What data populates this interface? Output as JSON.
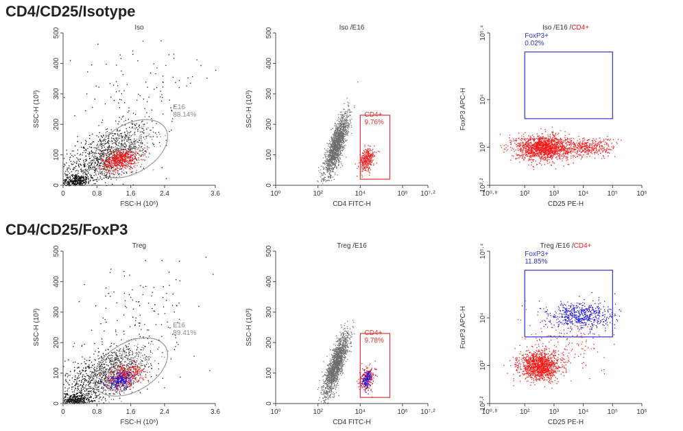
{
  "rows": [
    {
      "title": "CD4/CD25/Isotype"
    },
    {
      "title": "CD4/CD25/FoxP3"
    }
  ],
  "colors": {
    "black": "#111111",
    "gray": "#6e6e6e",
    "red": "#ff1414",
    "blue": "#1414e6",
    "gate_red": "#e03030",
    "gate_blue": "#3030c8",
    "ellipse": "#9a9a9a"
  },
  "chart_data": [
    {
      "id": "p11",
      "type": "scatter",
      "title": "Iso",
      "xlabel": "FSC-H (10⁶)",
      "ylabel": "SSC-H (10³)",
      "xscale": "linear",
      "xlim": [
        0,
        3.6
      ],
      "xticks": [
        "0",
        "0.8",
        "1.6",
        "2.4",
        "3.6"
      ],
      "xtickvals": [
        0,
        0.8,
        1.6,
        2.4,
        3.6
      ],
      "yscale": "linear",
      "ylim": [
        0,
        500
      ],
      "yticks": [
        "0",
        "100",
        "200",
        "300",
        "400",
        "500"
      ],
      "ytickvals": [
        0,
        100,
        200,
        300,
        400,
        500
      ],
      "populations": [
        {
          "color": "black",
          "n": 900,
          "center": [
            0.9,
            90
          ],
          "spread": [
            0.55,
            55
          ],
          "corr": 0.6
        },
        {
          "color": "black",
          "n": 350,
          "center": [
            0.3,
            15
          ],
          "spread": [
            0.18,
            10
          ],
          "corr": 0.2
        },
        {
          "color": "black",
          "n": 140,
          "center": [
            1.8,
            300
          ],
          "spread": [
            0.8,
            120
          ],
          "corr": 0.3
        },
        {
          "color": "gray",
          "n": 400,
          "center": [
            1.4,
            110
          ],
          "spread": [
            0.35,
            40
          ],
          "corr": 0.5
        },
        {
          "color": "red",
          "n": 500,
          "center": [
            1.35,
            85
          ],
          "spread": [
            0.22,
            18
          ],
          "corr": 0.3
        }
      ],
      "gate": {
        "kind": "ellipse",
        "label": "E16",
        "pct": "88.14%",
        "cx": 1.6,
        "cy": 120,
        "rx": 0.95,
        "ry": 80,
        "angle": -30,
        "label_at": [
          2.6,
          250
        ]
      }
    },
    {
      "id": "p12",
      "type": "scatter",
      "title": "Iso /E16",
      "xlabel": "CD4 FITC-H",
      "ylabel": "SSC-H (10³)",
      "xscale": "log",
      "xlim": [
        0,
        7.2
      ],
      "xticks": [
        "10⁰",
        "10²",
        "10⁴",
        "10⁶",
        "10⁷·²"
      ],
      "xtickvals": [
        0,
        2,
        4,
        6,
        7.2
      ],
      "yscale": "linear",
      "ylim": [
        0,
        500
      ],
      "yticks": [
        "0",
        "100",
        "200",
        "300",
        "400",
        "500"
      ],
      "ytickvals": [
        0,
        100,
        200,
        300,
        400,
        500
      ],
      "populations": [
        {
          "color": "gray",
          "n": 1600,
          "center": [
            2.85,
            130
          ],
          "spread": [
            0.28,
            50
          ],
          "corr": 0.8
        },
        {
          "color": "red",
          "n": 300,
          "center": [
            4.3,
            85
          ],
          "spread": [
            0.18,
            20
          ],
          "corr": 0.3
        }
      ],
      "gate": {
        "kind": "rect",
        "label": "CD4+",
        "pct": "9.76%",
        "x0": 4.0,
        "x1": 5.4,
        "y0": 20,
        "y1": 230,
        "label_at": [
          4.2,
          225
        ]
      }
    },
    {
      "id": "p13",
      "type": "scatter",
      "title": "Iso /E16 /",
      "title_red": "CD4+",
      "xlabel": "CD25 PE-H",
      "ylabel": "FoxP3 APC-H",
      "xscale": "log",
      "xlim": [
        0.8,
        6
      ],
      "xticks": [
        "10⁰·⁸",
        "10²",
        "10³",
        "10⁴",
        "10⁵",
        "10⁶"
      ],
      "xtickvals": [
        0.8,
        2,
        3,
        4,
        5,
        6
      ],
      "yscale": "log",
      "ylim": [
        2.2,
        5.4
      ],
      "yticks": [
        "10²·²",
        "10³",
        "10⁴",
        "10⁵·⁴"
      ],
      "ytickvals": [
        2.2,
        3,
        4,
        5.4
      ],
      "populations": [
        {
          "color": "red",
          "n": 1400,
          "center": [
            2.6,
            3.0
          ],
          "spread": [
            0.45,
            0.13
          ],
          "corr": 0
        },
        {
          "color": "red",
          "n": 400,
          "center": [
            4.1,
            3.0
          ],
          "spread": [
            0.5,
            0.1
          ],
          "corr": 0
        }
      ],
      "gate": {
        "kind": "rect",
        "label": "FoxP3+",
        "pct": "0.02%",
        "x0": 2.0,
        "x1": 5.0,
        "y0": 3.6,
        "y1": 5.0,
        "label_at": [
          2.0,
          5.3
        ]
      }
    },
    {
      "id": "p21",
      "type": "scatter",
      "title": "Treg",
      "xlabel": "FSC-H (10⁶)",
      "ylabel": "SSC-H (10³)",
      "xscale": "linear",
      "xlim": [
        0,
        3.6
      ],
      "xticks": [
        "0",
        "0.8",
        "1.6",
        "2.4",
        "3.6"
      ],
      "xtickvals": [
        0,
        0.8,
        1.6,
        2.4,
        3.6
      ],
      "yscale": "linear",
      "ylim": [
        0,
        500
      ],
      "yticks": [
        "0",
        "100",
        "200",
        "300",
        "400",
        "500"
      ],
      "ytickvals": [
        0,
        100,
        200,
        300,
        400,
        500
      ],
      "populations": [
        {
          "color": "black",
          "n": 900,
          "center": [
            0.9,
            90
          ],
          "spread": [
            0.55,
            55
          ],
          "corr": 0.6
        },
        {
          "color": "black",
          "n": 350,
          "center": [
            0.3,
            15
          ],
          "spread": [
            0.18,
            10
          ],
          "corr": 0.2
        },
        {
          "color": "black",
          "n": 140,
          "center": [
            1.8,
            300
          ],
          "spread": [
            0.8,
            120
          ],
          "corr": 0.3
        },
        {
          "color": "gray",
          "n": 400,
          "center": [
            1.4,
            110
          ],
          "spread": [
            0.35,
            40
          ],
          "corr": 0.5
        },
        {
          "color": "red",
          "n": 380,
          "center": [
            1.45,
            90
          ],
          "spread": [
            0.22,
            20
          ],
          "corr": 0.3
        },
        {
          "color": "blue",
          "n": 200,
          "center": [
            1.35,
            75
          ],
          "spread": [
            0.15,
            14
          ],
          "corr": 0.3
        }
      ],
      "gate": {
        "kind": "ellipse",
        "label": "E16",
        "pct": "89.41%",
        "cx": 1.6,
        "cy": 120,
        "rx": 0.95,
        "ry": 80,
        "angle": -30,
        "label_at": [
          2.6,
          250
        ]
      }
    },
    {
      "id": "p22",
      "type": "scatter",
      "title": "Treg /E16",
      "xlabel": "CD4 FITC-H",
      "ylabel": "SSC-H (10³)",
      "xscale": "log",
      "xlim": [
        0,
        7.2
      ],
      "xticks": [
        "10⁰",
        "10²",
        "10⁴",
        "10⁶",
        "10⁷·²"
      ],
      "xtickvals": [
        0,
        2,
        4,
        6,
        7.2
      ],
      "yscale": "linear",
      "ylim": [
        0,
        500
      ],
      "yticks": [
        "0",
        "100",
        "200",
        "300",
        "400",
        "500"
      ],
      "ytickvals": [
        0,
        100,
        200,
        300,
        400,
        500
      ],
      "populations": [
        {
          "color": "gray",
          "n": 1600,
          "center": [
            2.85,
            130
          ],
          "spread": [
            0.28,
            50
          ],
          "corr": 0.8
        },
        {
          "color": "red",
          "n": 220,
          "center": [
            4.3,
            85
          ],
          "spread": [
            0.18,
            20
          ],
          "corr": 0.3
        },
        {
          "color": "blue",
          "n": 130,
          "center": [
            4.3,
            80
          ],
          "spread": [
            0.12,
            15
          ],
          "corr": 0.3
        }
      ],
      "gate": {
        "kind": "rect",
        "label": "CD4+",
        "pct": "9.78%",
        "x0": 4.0,
        "x1": 5.4,
        "y0": 20,
        "y1": 230,
        "label_at": [
          4.2,
          225
        ]
      }
    },
    {
      "id": "p23",
      "type": "scatter",
      "title": "Treg /E16 /",
      "title_red": "CD4+",
      "xlabel": "CD25 PE-H",
      "ylabel": "FoxP3 APC-H",
      "xscale": "log",
      "xlim": [
        0.8,
        6
      ],
      "xticks": [
        "10⁰·⁸",
        "10²",
        "10³",
        "10⁴",
        "10⁵",
        "10⁶"
      ],
      "xtickvals": [
        0.8,
        2,
        3,
        4,
        5,
        6
      ],
      "yscale": "log",
      "ylim": [
        2.2,
        5.4
      ],
      "yticks": [
        "10²·²",
        "10³",
        "10⁴",
        "10⁵·⁴"
      ],
      "ytickvals": [
        2.2,
        3,
        4,
        5.4
      ],
      "populations": [
        {
          "color": "red",
          "n": 1200,
          "center": [
            2.5,
            3.0
          ],
          "spread": [
            0.35,
            0.15
          ],
          "corr": 0
        },
        {
          "color": "red",
          "n": 150,
          "center": [
            3.5,
            3.6
          ],
          "spread": [
            0.7,
            0.35
          ],
          "corr": 0
        },
        {
          "color": "blue",
          "n": 550,
          "center": [
            3.9,
            4.05
          ],
          "spread": [
            0.55,
            0.15
          ],
          "corr": 0
        }
      ],
      "gate": {
        "kind": "rect",
        "label": "FoxP3+",
        "pct": "11.85%",
        "x0": 2.0,
        "x1": 5.0,
        "y0": 3.6,
        "y1": 5.0,
        "label_at": [
          2.0,
          5.3
        ]
      }
    }
  ]
}
